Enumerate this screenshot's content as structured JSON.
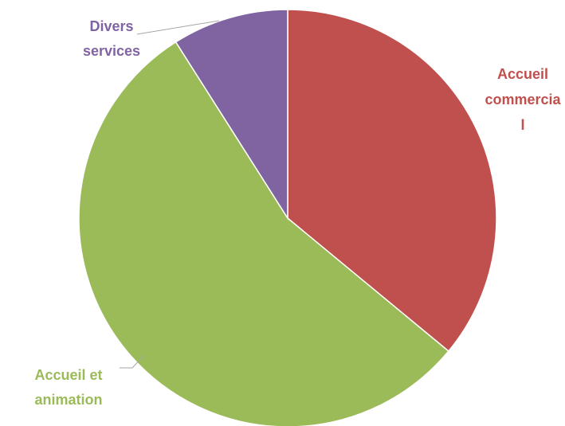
{
  "chart_data": {
    "type": "pie",
    "title": "",
    "series": [
      {
        "slices": [
          {
            "label": "Accueil commercial",
            "value": 36,
            "color": "#C0504D",
            "label_lines": [
              "Accueil",
              "commercia",
              "l"
            ]
          },
          {
            "label": "Accueil et animation",
            "value": 55,
            "color": "#9BBB59",
            "label_lines": [
              "Accueil et",
              "animation"
            ]
          },
          {
            "label": "Divers services",
            "value": 9,
            "color": "#8064A2",
            "label_lines": [
              "Divers",
              "services"
            ]
          }
        ]
      }
    ],
    "start_angle": "12-o'clock",
    "direction": "clockwise",
    "legend": "none"
  }
}
